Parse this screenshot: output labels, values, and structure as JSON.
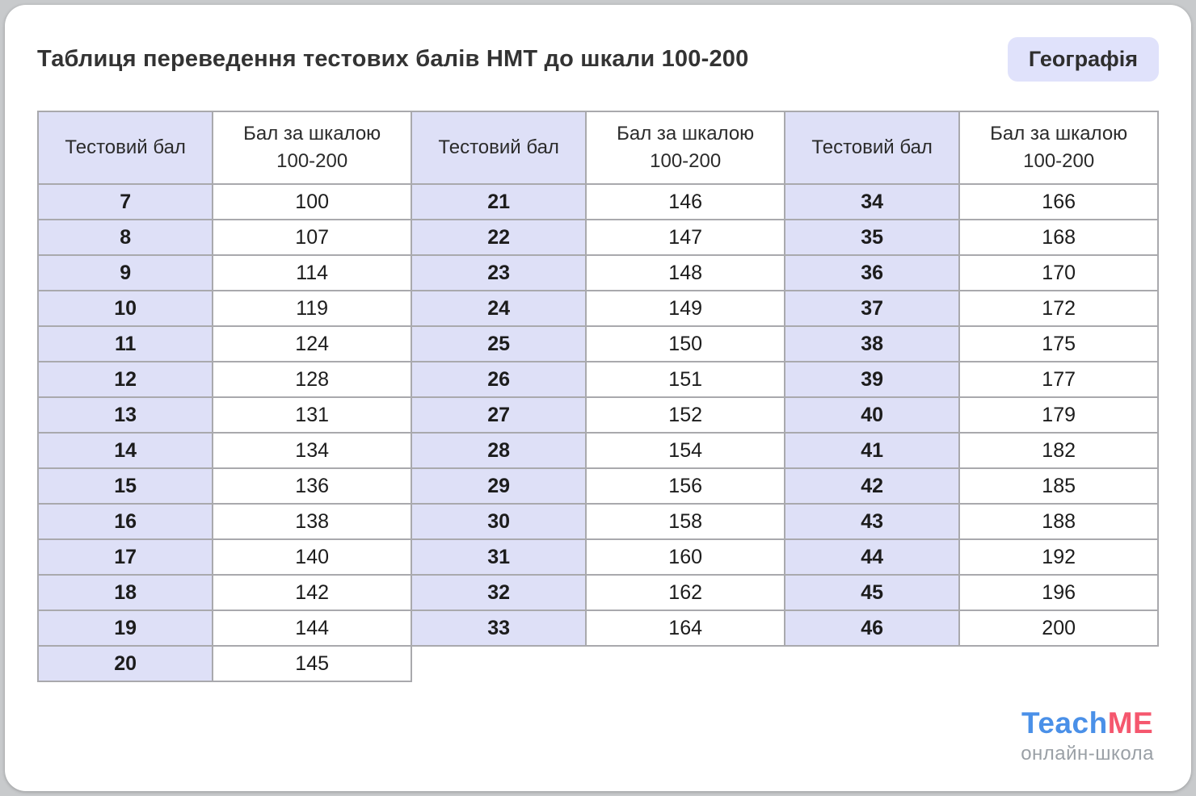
{
  "header": {
    "title": "Таблиця переведення тестових балів НМТ до шкали 100-200",
    "badge": "Географія"
  },
  "table": {
    "headers": {
      "test": "Тестовий бал",
      "scale_line1": "Бал за шкалою",
      "scale_line2": "100-200"
    }
  },
  "chart_data": {
    "type": "table",
    "title": "Таблиця переведення тестових балів НМТ до шкали 100-200",
    "subject": "Географія",
    "columns": [
      "Тестовий бал",
      "Бал за шкалою 100-200"
    ],
    "rows": [
      [
        7,
        100
      ],
      [
        8,
        107
      ],
      [
        9,
        114
      ],
      [
        10,
        119
      ],
      [
        11,
        124
      ],
      [
        12,
        128
      ],
      [
        13,
        131
      ],
      [
        14,
        134
      ],
      [
        15,
        136
      ],
      [
        16,
        138
      ],
      [
        17,
        140
      ],
      [
        18,
        142
      ],
      [
        19,
        144
      ],
      [
        20,
        145
      ],
      [
        21,
        146
      ],
      [
        22,
        147
      ],
      [
        23,
        148
      ],
      [
        24,
        149
      ],
      [
        25,
        150
      ],
      [
        26,
        151
      ],
      [
        27,
        152
      ],
      [
        28,
        154
      ],
      [
        29,
        156
      ],
      [
        30,
        158
      ],
      [
        31,
        160
      ],
      [
        32,
        162
      ],
      [
        33,
        164
      ],
      [
        34,
        166
      ],
      [
        35,
        168
      ],
      [
        36,
        170
      ],
      [
        37,
        172
      ],
      [
        38,
        175
      ],
      [
        39,
        177
      ],
      [
        40,
        179
      ],
      [
        41,
        182
      ],
      [
        42,
        185
      ],
      [
        43,
        188
      ],
      [
        44,
        192
      ],
      [
        45,
        196
      ],
      [
        46,
        200
      ]
    ]
  },
  "footer": {
    "brand_teach": "Teach",
    "brand_me": "ME",
    "subtitle": "онлайн-школа"
  },
  "colors": {
    "accent_purple": "#dee0f7",
    "badge_bg": "#e0e2fb",
    "border_gray": "#a9a9ad",
    "brand_blue": "#4a90e8",
    "brand_pink": "#f5576e",
    "page_bg": "#c8cacc"
  }
}
